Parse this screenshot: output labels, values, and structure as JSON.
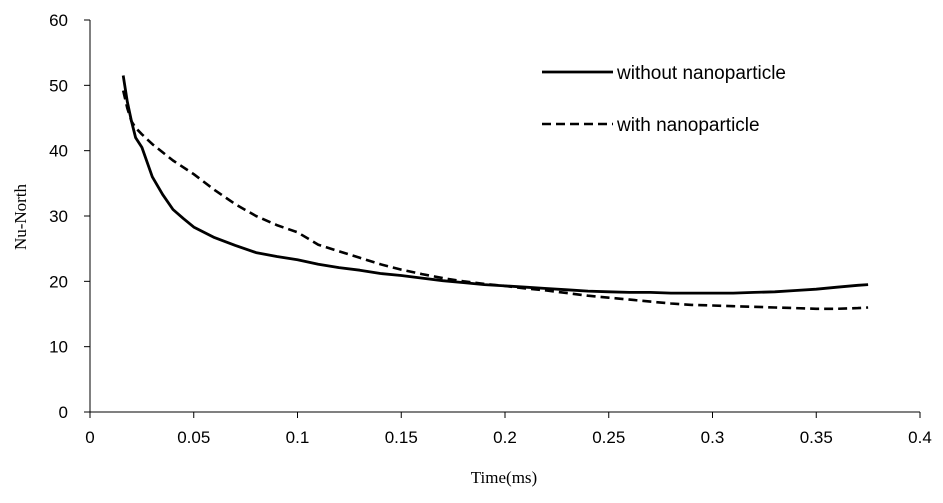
{
  "chart_data": {
    "type": "line",
    "xlabel": "Time(ms)",
    "ylabel": "Nu-North",
    "xlim": [
      0,
      0.4
    ],
    "ylim": [
      0,
      60
    ],
    "x_ticks": [
      "0",
      "0.05",
      "0.1",
      "0.15",
      "0.2",
      "0.25",
      "0.3",
      "0.35",
      "0.4"
    ],
    "y_ticks": [
      "0",
      "10",
      "20",
      "30",
      "40",
      "50",
      "60"
    ],
    "x_tick_values": [
      0,
      0.05,
      0.1,
      0.15,
      0.2,
      0.25,
      0.3,
      0.35,
      0.4
    ],
    "y_tick_values": [
      0,
      10,
      20,
      30,
      40,
      50,
      60
    ],
    "grid": false,
    "legend_position": "top-right",
    "series": [
      {
        "name": "without nanoparticle",
        "style": "solid",
        "color": "#000000",
        "x": [
          0.016,
          0.018,
          0.02,
          0.022,
          0.025,
          0.03,
          0.035,
          0.04,
          0.045,
          0.05,
          0.06,
          0.07,
          0.08,
          0.09,
          0.1,
          0.11,
          0.12,
          0.13,
          0.14,
          0.15,
          0.16,
          0.17,
          0.18,
          0.19,
          0.2,
          0.21,
          0.22,
          0.23,
          0.24,
          0.25,
          0.26,
          0.27,
          0.28,
          0.29,
          0.3,
          0.31,
          0.32,
          0.33,
          0.34,
          0.35,
          0.36,
          0.37,
          0.375
        ],
        "y": [
          51.5,
          47.5,
          44.5,
          42,
          40.5,
          36,
          33.3,
          31,
          29.6,
          28.3,
          26.7,
          25.5,
          24.4,
          23.8,
          23.3,
          22.6,
          22.1,
          21.7,
          21.2,
          20.9,
          20.5,
          20.1,
          19.8,
          19.5,
          19.3,
          19.1,
          18.9,
          18.7,
          18.5,
          18.4,
          18.3,
          18.3,
          18.2,
          18.2,
          18.2,
          18.2,
          18.3,
          18.4,
          18.6,
          18.8,
          19.1,
          19.4,
          19.5
        ]
      },
      {
        "name": "with nanoparticle",
        "style": "dashed",
        "color": "#000000",
        "x": [
          0.016,
          0.018,
          0.02,
          0.022,
          0.025,
          0.03,
          0.04,
          0.05,
          0.06,
          0.07,
          0.08,
          0.09,
          0.1,
          0.11,
          0.12,
          0.13,
          0.14,
          0.15,
          0.16,
          0.17,
          0.18,
          0.19,
          0.2,
          0.21,
          0.22,
          0.23,
          0.24,
          0.25,
          0.26,
          0.27,
          0.28,
          0.29,
          0.3,
          0.31,
          0.32,
          0.33,
          0.34,
          0.35,
          0.36,
          0.37,
          0.375
        ],
        "y": [
          49.2,
          46.5,
          44.5,
          43.5,
          42.5,
          41,
          38.5,
          36.4,
          34,
          31.8,
          30,
          28.6,
          27.5,
          25.6,
          24.6,
          23.6,
          22.6,
          21.8,
          21.1,
          20.5,
          20,
          19.6,
          19.3,
          18.9,
          18.6,
          18.2,
          17.8,
          17.5,
          17.2,
          16.9,
          16.6,
          16.4,
          16.3,
          16.2,
          16.1,
          16.0,
          15.9,
          15.8,
          15.8,
          15.9,
          16.0
        ]
      }
    ]
  }
}
